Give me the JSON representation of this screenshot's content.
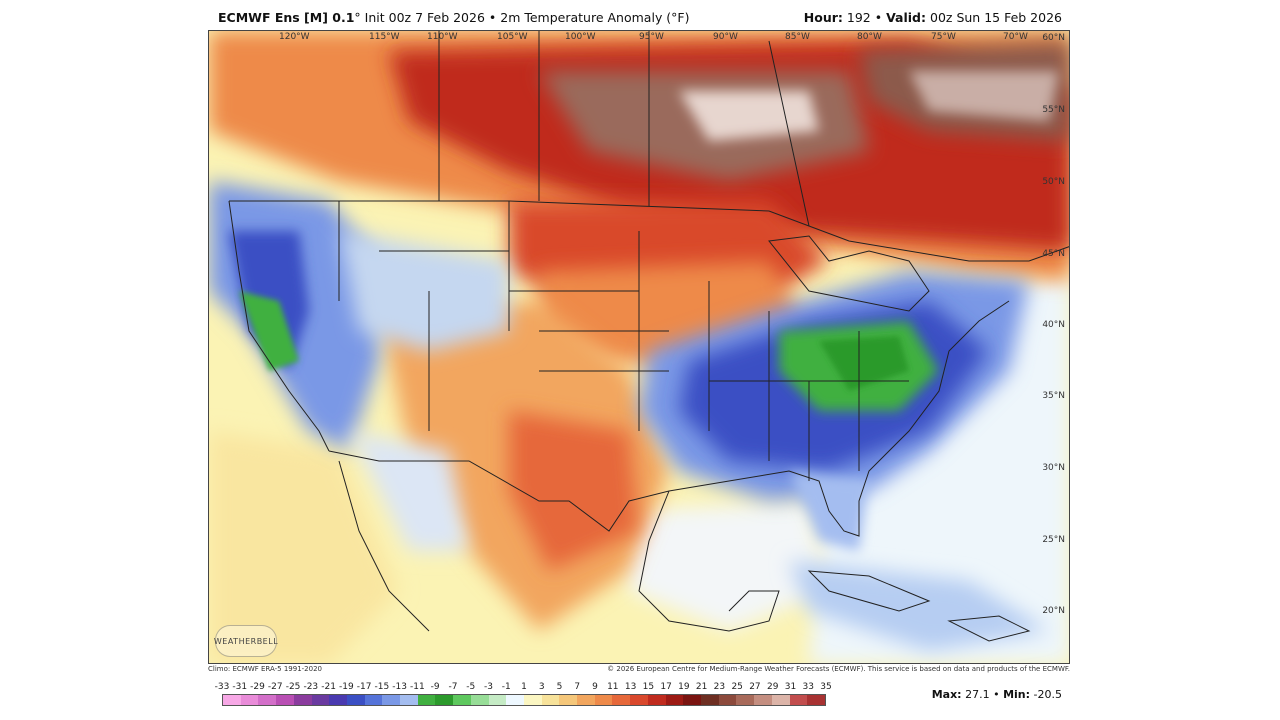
{
  "header": {
    "model": "ECMWF Ens [M] 0.1",
    "degree": "°",
    "init_prefix": " Init",
    "init": "00z 7 Feb 2026",
    "sep1": " • ",
    "field": "2m Temperature Anomaly (°F)",
    "hour_label": "Hour:",
    "hour": "192",
    "sep2": " • ",
    "valid_label": "Valid:",
    "valid": "00z Sun 15 Feb 2026"
  },
  "map": {
    "lon_labels": [
      "120°W",
      "115°W",
      "110°W",
      "105°W",
      "100°W",
      "95°W",
      "90°W",
      "85°W",
      "80°W",
      "75°W",
      "70°W"
    ],
    "lat_labels": [
      "60°N",
      "55°N",
      "50°N",
      "45°N",
      "40°N",
      "35°N",
      "30°N",
      "25°N",
      "20°N"
    ],
    "watermark": "WEATHERBELL"
  },
  "footer": {
    "climo": "Climo: ECMWF ERA-5 1991-2020",
    "copyright": "© 2026 European Centre for Medium-Range Weather Forecasts (ECMWF). This service is based on data and products of the ECMWF."
  },
  "legend": {
    "ticks": [
      "-33",
      "-31",
      "-29",
      "-27",
      "-25",
      "-23",
      "-21",
      "-19",
      "-17",
      "-15",
      "-13",
      "-11",
      "-9",
      "-7",
      "-5",
      "-3",
      "-1",
      "1",
      "3",
      "5",
      "7",
      "9",
      "11",
      "13",
      "15",
      "17",
      "19",
      "21",
      "23",
      "25",
      "27",
      "29",
      "31",
      "33",
      "35"
    ],
    "colors": [
      "#f7a8e6",
      "#e98cd9",
      "#d36fc9",
      "#b94fb4",
      "#8b3c9e",
      "#6a3aa0",
      "#4a3ab0",
      "#3b4fc4",
      "#5573d9",
      "#7a98e6",
      "#a4bdf0",
      "#40b040",
      "#2c9a2c",
      "#5ec85e",
      "#97dd97",
      "#c5ebc5",
      "#eef8ff",
      "#fbf6c2",
      "#f7e29a",
      "#f5c77a",
      "#f2a65e",
      "#ee8a4a",
      "#e6683a",
      "#d9482c",
      "#c02b1e",
      "#9d1a14",
      "#7a1410",
      "#6e2e22",
      "#8c4a3c",
      "#a86a5a",
      "#c48e80",
      "#dcb4a8",
      "#c24d4d",
      "#a83232"
    ],
    "max_label": "Max:",
    "max": "27.1",
    "sep": " • ",
    "min_label": "Min:",
    "min": "-20.5"
  }
}
